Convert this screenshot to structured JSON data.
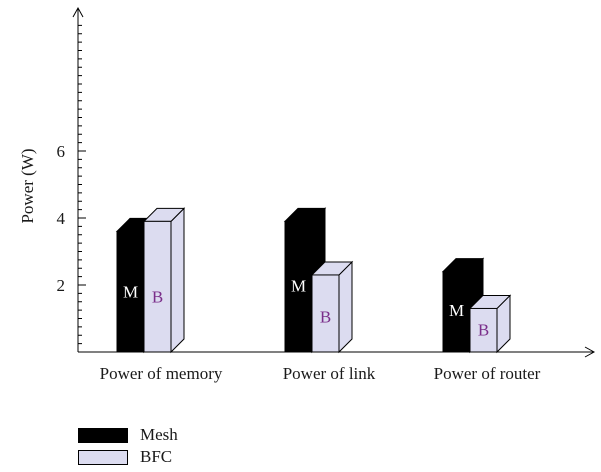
{
  "chart_data": {
    "type": "bar",
    "categories": [
      "Power of memory",
      "Power of link",
      "Power of router"
    ],
    "series": [
      {
        "name": "Mesh",
        "short": "M",
        "values": [
          3.6,
          3.9,
          2.4
        ],
        "color": "#000000",
        "text_color": "#ffffff"
      },
      {
        "name": "BFC",
        "short": "B",
        "values": [
          3.9,
          2.3,
          1.3
        ],
        "color": "#dcdcf0",
        "text_color": "#7a2e8a"
      }
    ],
    "ylabel": "Power (W)",
    "xlabel": "",
    "ylim": [
      0,
      10
    ],
    "yticks": [
      2,
      4,
      6
    ],
    "grid": false,
    "legend_position": "bottom-left"
  }
}
